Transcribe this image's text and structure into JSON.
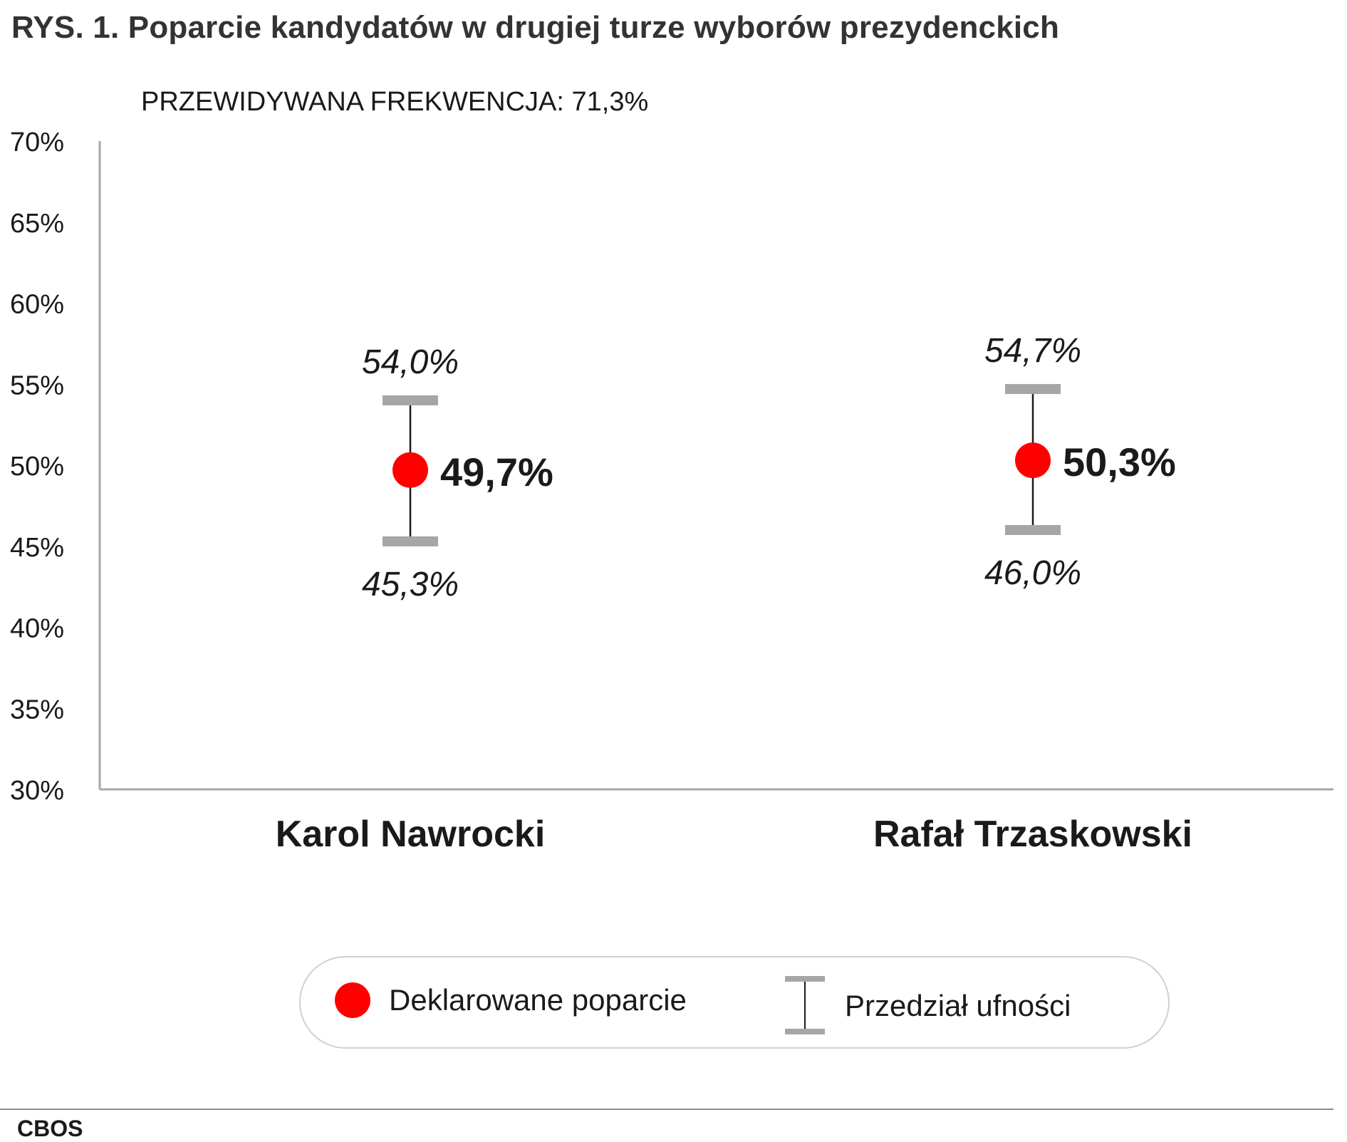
{
  "title": "RYS. 1. Poparcie kandydatów w drugiej turze wyborów prezydenckich",
  "subtitle": "PRZEWIDYWANA FREKWENCJA: 71,3%",
  "source": "CBOS",
  "colors": {
    "point": "#ff0000",
    "cap": "#a6a6a6",
    "whisker": "#1a1a1a",
    "axis": "#a6a6a6"
  },
  "legend": {
    "items": [
      {
        "label": "Deklarowane poparcie",
        "icon": "red-dot-icon"
      },
      {
        "label": "Przedział ufności",
        "icon": "confidence-interval-icon"
      }
    ]
  },
  "chart_data": {
    "type": "scatter",
    "title": "RYS. 1. Poparcie kandydatów w drugiej turze wyborów prezydenckich",
    "subtitle": "PRZEWIDYWANA FREKWENCJA: 71,3%",
    "categories": [
      "Karol Nawrocki",
      "Rafał Trzaskowski"
    ],
    "values": [
      49.7,
      50.3
    ],
    "value_labels": [
      "49,7%",
      "50,3%"
    ],
    "ci_lower": [
      45.3,
      46.0
    ],
    "ci_lower_labels": [
      "45,3%",
      "46,0%"
    ],
    "ci_upper": [
      54.0,
      54.7
    ],
    "ci_upper_labels": [
      "54,0%",
      "54,7%"
    ],
    "ylim": [
      30,
      70
    ],
    "yticks": [
      30,
      35,
      40,
      45,
      50,
      55,
      60,
      65,
      70
    ],
    "ytick_labels": [
      "30%",
      "35%",
      "40%",
      "45%",
      "50%",
      "55%",
      "60%",
      "65%",
      "70%"
    ],
    "grid": false,
    "legend_position": "bottom"
  }
}
